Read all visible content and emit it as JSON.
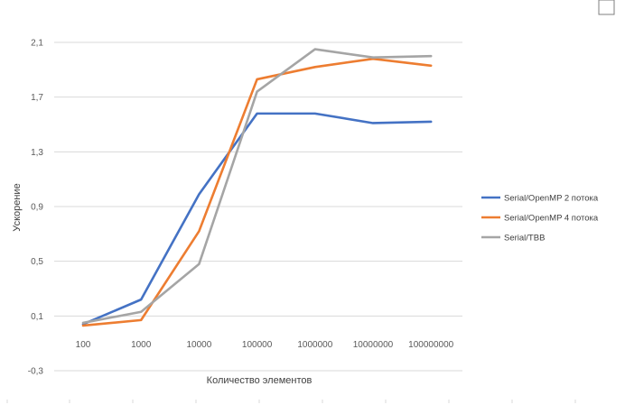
{
  "chart_data": {
    "type": "line",
    "title": "",
    "xlabel": "Количество элементов",
    "ylabel": "Ускорение",
    "categories": [
      "100",
      "1000",
      "10000",
      "100000",
      "1000000",
      "10000000",
      "100000000"
    ],
    "ylim": [
      -0.3,
      2.1
    ],
    "yticks": [
      "2,1",
      "1,7",
      "1,3",
      "0,9",
      "0,5",
      "0,1",
      "-0,3"
    ],
    "grid": true,
    "legend_position": "right",
    "series": [
      {
        "name": "Serial/OpenMP 2 потока",
        "color": "#4472C4",
        "values": [
          0.04,
          0.22,
          0.99,
          1.58,
          1.58,
          1.51,
          1.52
        ]
      },
      {
        "name": "Serial/OpenMP 4 потока",
        "color": "#ED7D31",
        "values": [
          0.03,
          0.07,
          0.72,
          1.83,
          1.92,
          1.98,
          1.93
        ]
      },
      {
        "name": "Serial/TBB",
        "color": "#A5A5A5",
        "values": [
          0.05,
          0.13,
          0.48,
          1.74,
          2.05,
          1.99,
          2.0
        ]
      }
    ]
  }
}
